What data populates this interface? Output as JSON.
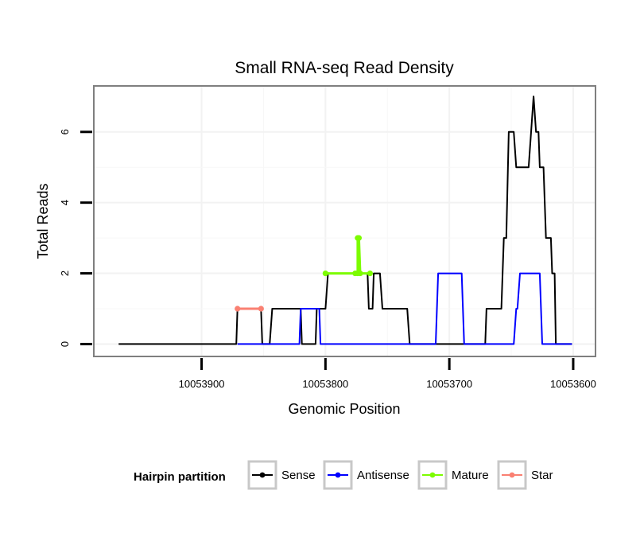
{
  "chart_data": {
    "type": "line",
    "title": "Small RNA-seq Read Density",
    "xlabel": "Genomic Position",
    "ylabel": "Total Reads",
    "x_reversed": true,
    "xlim": [
      10053987,
      10053582
    ],
    "ylim": [
      -0.35,
      7.3
    ],
    "x_ticks": [
      10053900,
      10053800,
      10053700,
      10053600
    ],
    "x_tick_labels": [
      "10053900",
      "10053800",
      "10053700",
      "10053600"
    ],
    "y_ticks": [
      0,
      2,
      4,
      6
    ],
    "y_tick_labels": [
      "0",
      "2",
      "4",
      "6"
    ],
    "grid": true,
    "legend": {
      "title": "Hairpin partition",
      "position": "bottom",
      "entries": [
        {
          "name": "Sense",
          "color": "#000000"
        },
        {
          "name": "Antisense",
          "color": "#0000ff"
        },
        {
          "name": "Mature",
          "color": "#7cfc00"
        },
        {
          "name": "Star",
          "color": "#fa8072"
        }
      ]
    },
    "series": [
      {
        "name": "Sense",
        "color": "#000000",
        "points": [
          [
            10053967,
            0
          ],
          [
            10053872,
            0
          ],
          [
            10053871,
            1
          ],
          [
            10053852,
            1
          ],
          [
            10053851,
            0
          ],
          [
            10053845,
            0
          ],
          [
            10053843,
            1
          ],
          [
            10053820,
            1
          ],
          [
            10053819,
            0
          ],
          [
            10053808,
            0
          ],
          [
            10053807,
            1
          ],
          [
            10053800,
            1
          ],
          [
            10053798,
            2
          ],
          [
            10053774,
            2
          ],
          [
            10053773,
            3
          ],
          [
            10053772,
            2
          ],
          [
            10053766,
            2
          ],
          [
            10053765,
            1
          ],
          [
            10053762,
            1
          ],
          [
            10053761,
            2
          ],
          [
            10053756,
            2
          ],
          [
            10053754,
            1
          ],
          [
            10053734,
            1
          ],
          [
            10053732,
            0
          ],
          [
            10053671,
            0
          ],
          [
            10053670,
            1
          ],
          [
            10053658,
            1
          ],
          [
            10053656,
            3
          ],
          [
            10053654,
            3
          ],
          [
            10053652,
            6
          ],
          [
            10053648,
            6
          ],
          [
            10053646,
            5
          ],
          [
            10053636,
            5
          ],
          [
            10053634,
            6
          ],
          [
            10053632,
            7
          ],
          [
            10053630,
            6
          ],
          [
            10053628,
            6
          ],
          [
            10053627,
            5
          ],
          [
            10053624,
            5
          ],
          [
            10053622,
            3
          ],
          [
            10053618,
            3
          ],
          [
            10053617,
            2
          ],
          [
            10053615,
            2
          ],
          [
            10053614,
            0
          ],
          [
            10053601,
            0
          ]
        ]
      },
      {
        "name": "Antisense",
        "color": "#0000ff",
        "points": [
          [
            10053871,
            0
          ],
          [
            10053821,
            0
          ],
          [
            10053820,
            1
          ],
          [
            10053805,
            1
          ],
          [
            10053804,
            0
          ],
          [
            10053711,
            0
          ],
          [
            10053709,
            2
          ],
          [
            10053690,
            2
          ],
          [
            10053688,
            0
          ],
          [
            10053648,
            0
          ],
          [
            10053646,
            1
          ],
          [
            10053645,
            1
          ],
          [
            10053643,
            2
          ],
          [
            10053627,
            2
          ],
          [
            10053625,
            0
          ],
          [
            10053601,
            0
          ]
        ]
      },
      {
        "name": "Mature",
        "color": "#7cfc00",
        "points": [
          [
            10053800,
            2
          ],
          [
            10053776,
            2
          ],
          [
            10053774,
            2
          ],
          [
            10053774,
            3
          ],
          [
            10053773,
            3
          ],
          [
            10053772,
            2
          ],
          [
            10053764,
            2
          ]
        ]
      },
      {
        "name": "Star",
        "color": "#fa8072",
        "points": [
          [
            10053871,
            1
          ],
          [
            10053852,
            1
          ]
        ]
      }
    ]
  }
}
